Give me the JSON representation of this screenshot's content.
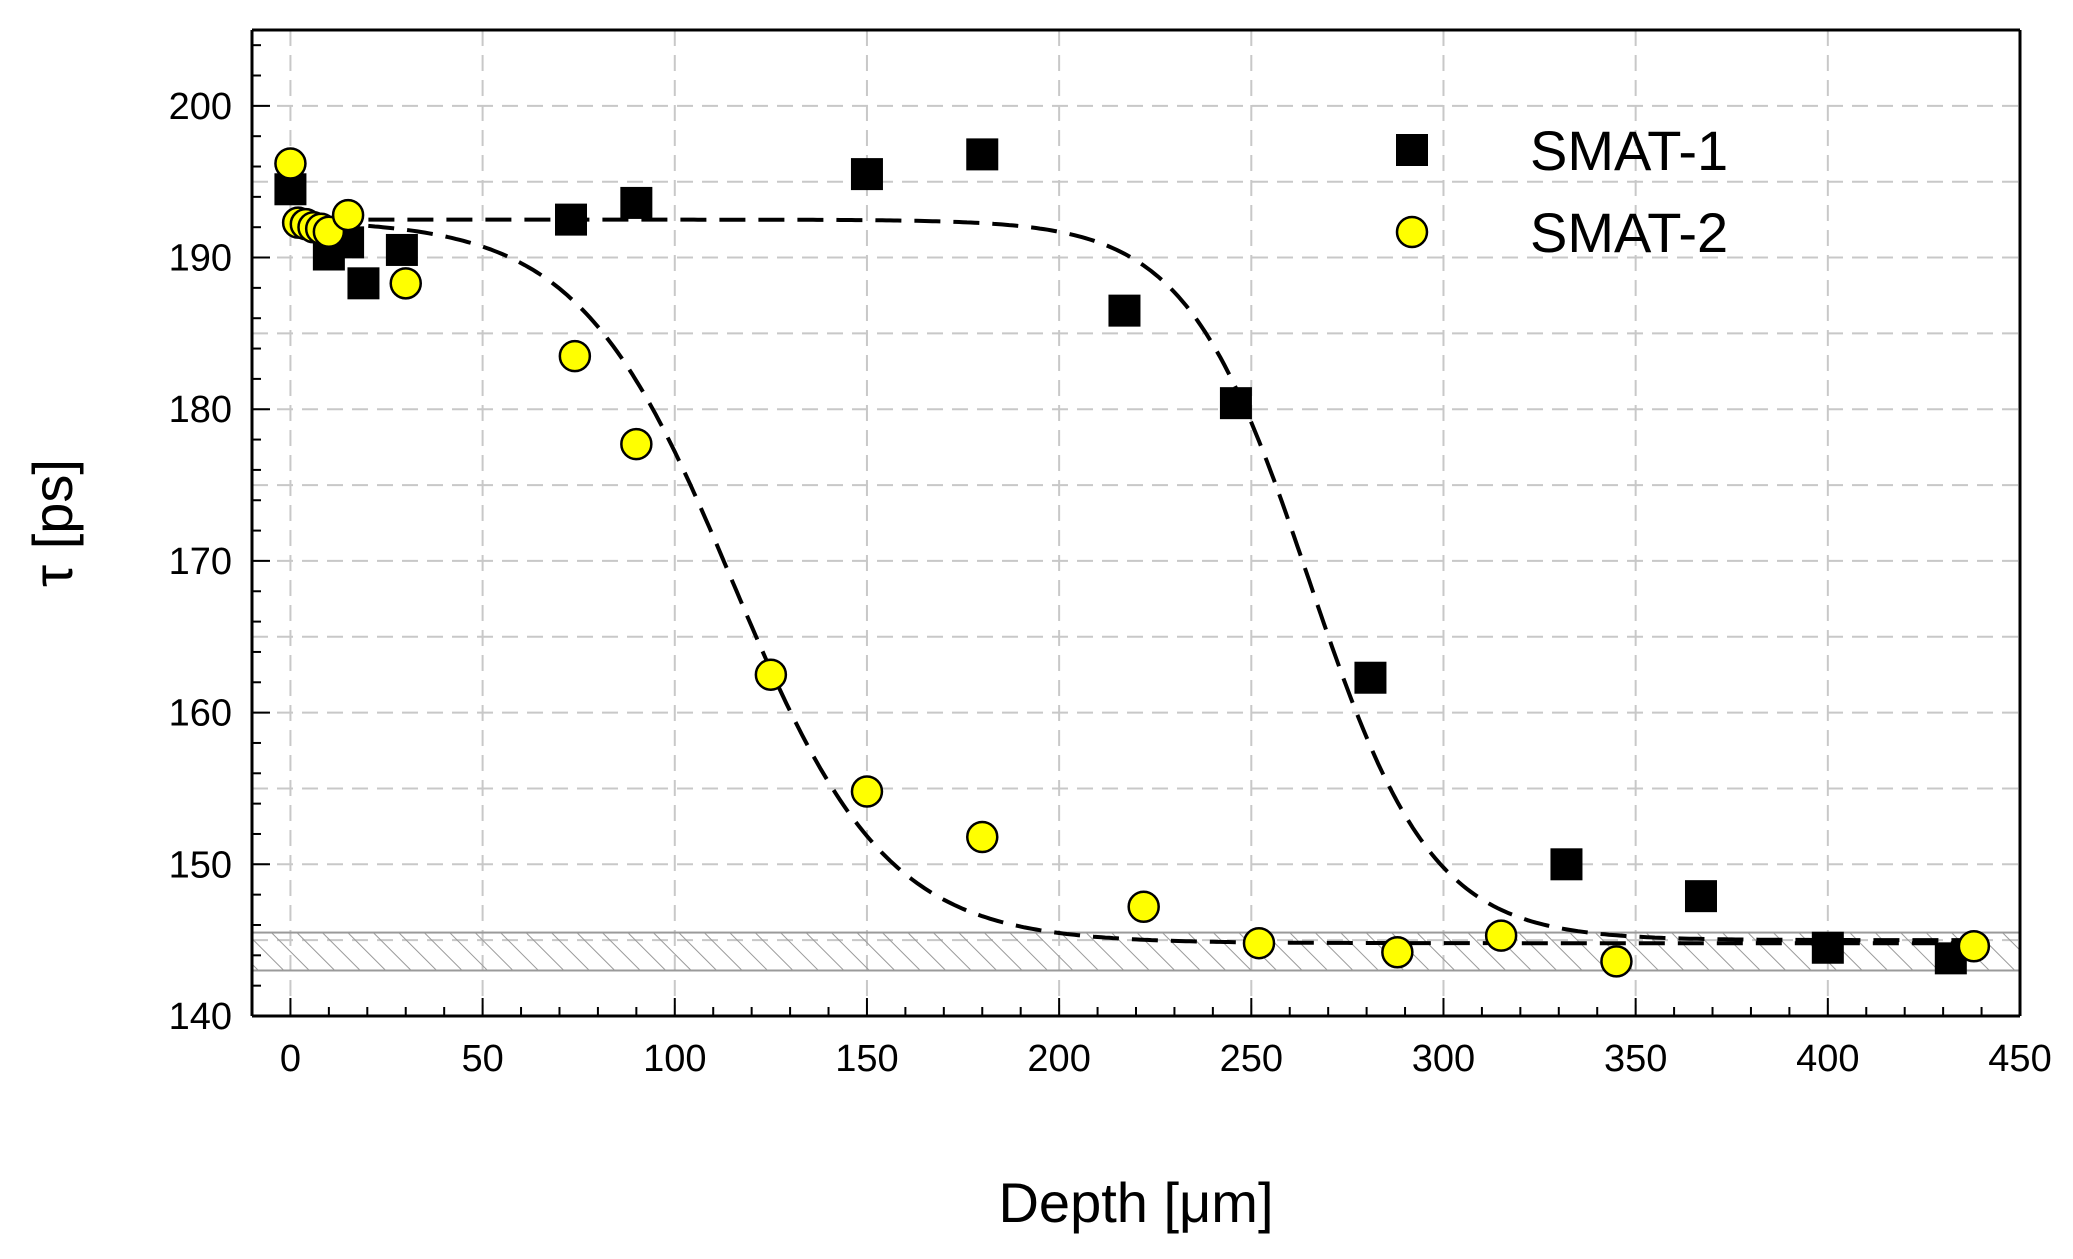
{
  "chart_data": {
    "type": "scatter",
    "title": "",
    "xlabel": "Depth [μm]",
    "ylabel": "τ [ps]",
    "xlim": [
      -10,
      450
    ],
    "ylim": [
      140,
      205
    ],
    "xticks": [
      0,
      50,
      100,
      150,
      200,
      250,
      300,
      350,
      400,
      450
    ],
    "yticks": [
      140,
      150,
      160,
      170,
      180,
      190,
      200
    ],
    "x_minor_step": 10,
    "y_minor_step": 2,
    "grid": true,
    "legend_position": "top-right",
    "series": [
      {
        "name": "SMAT-1",
        "marker": "square",
        "color": "#000000",
        "points": [
          [
            0,
            194.5
          ],
          [
            10,
            190.2
          ],
          [
            15,
            191.0
          ],
          [
            19,
            188.3
          ],
          [
            29,
            190.5
          ],
          [
            73,
            192.5
          ],
          [
            90,
            193.6
          ],
          [
            150,
            195.5
          ],
          [
            180,
            196.8
          ],
          [
            217,
            186.5
          ],
          [
            246,
            180.4
          ],
          [
            281,
            162.3
          ],
          [
            332,
            150.0
          ],
          [
            367,
            147.9
          ],
          [
            400,
            144.5
          ],
          [
            432,
            143.8
          ]
        ],
        "fit": {
          "plateau_high": 192.5,
          "plateau_low": 145.0,
          "midpoint": 265,
          "width": 16
        }
      },
      {
        "name": "SMAT-2",
        "marker": "circle",
        "color": "#ffff00",
        "points": [
          [
            0,
            196.2
          ],
          [
            2,
            192.3
          ],
          [
            4,
            192.2
          ],
          [
            6,
            192.0
          ],
          [
            8,
            191.9
          ],
          [
            10,
            191.7
          ],
          [
            15,
            192.8
          ],
          [
            30,
            188.3
          ],
          [
            74,
            183.5
          ],
          [
            90,
            177.7
          ],
          [
            125,
            162.5
          ],
          [
            150,
            154.8
          ],
          [
            180,
            151.8
          ],
          [
            222,
            147.2
          ],
          [
            252,
            144.8
          ],
          [
            288,
            144.2
          ],
          [
            315,
            145.3
          ],
          [
            345,
            143.6
          ],
          [
            438,
            144.6
          ]
        ],
        "fit": {
          "plateau_high": 192.5,
          "plateau_low": 144.8,
          "midpoint": 115,
          "width": 20
        }
      }
    ],
    "reference_band": {
      "y_min": 143.0,
      "y_max": 145.5,
      "pattern": "hatched"
    }
  }
}
